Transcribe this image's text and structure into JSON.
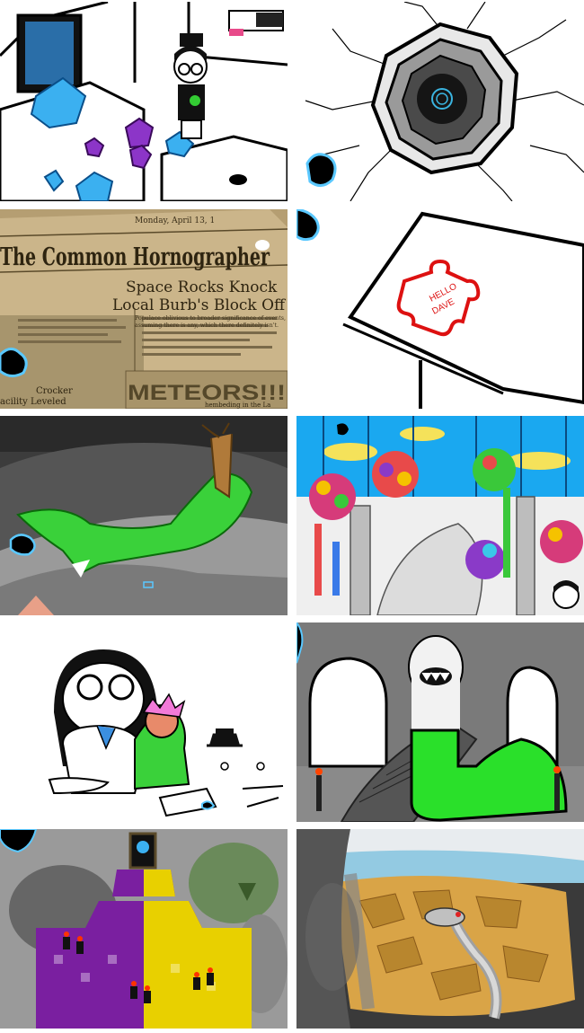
{
  "panels": [
    {
      "id": "bedroom-scene"
    },
    {
      "id": "crater-hole"
    },
    {
      "id": "newspaper",
      "date_line": "Monday, April 13, 1",
      "masthead": "The Common Hornographer",
      "headline_line1": "Space Rocks Knock",
      "headline_line2": "Local Burb's Block Off",
      "subhead_line1": "Populace oblivious to broader significance of events,",
      "subhead_line2": "assuming there is any, which there definitely isn't.",
      "banner": "METEORS!!!",
      "side_text_line1": "Crocker",
      "side_text_line2": "acility Leveled",
      "side_text_line3": "hembeding in the La"
    },
    {
      "id": "puzzle-note",
      "note_line1": "HELLO",
      "note_line2": "DAVE"
    },
    {
      "id": "island-terrain"
    },
    {
      "id": "atrium-flowers"
    },
    {
      "id": "girl-and-doll"
    },
    {
      "id": "ghost-creature-hall"
    },
    {
      "id": "shrine-fireplace"
    },
    {
      "id": "cavern-serpent"
    }
  ],
  "colors": {
    "bright_green": "#22dd22",
    "gel_blue": "#44aaff",
    "newsprint": "#cbb58a",
    "purple": "#7a1fa0",
    "yellow": "#e8d000"
  }
}
